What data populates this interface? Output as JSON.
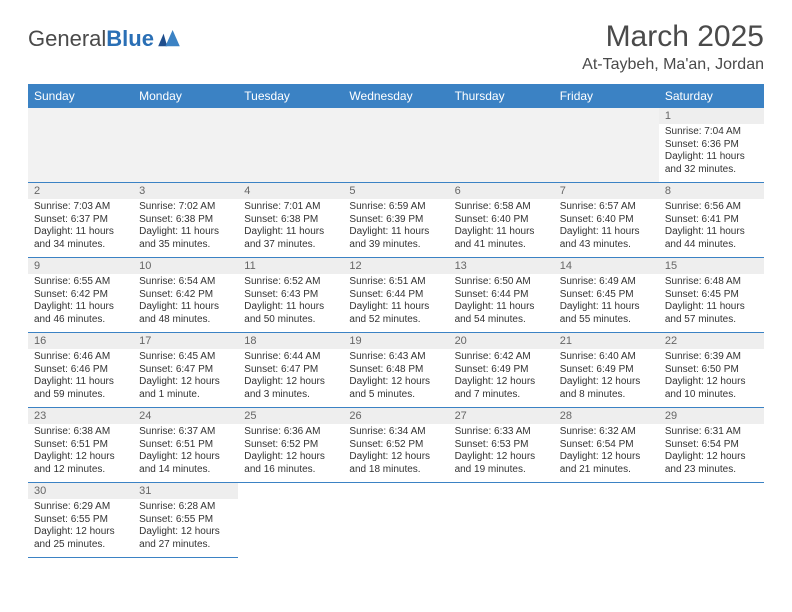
{
  "brand": {
    "left": "General",
    "right": "Blue"
  },
  "title": "March 2025",
  "location": "At-Taybeh, Ma'an, Jordan",
  "daynames": [
    "Sunday",
    "Monday",
    "Tuesday",
    "Wednesday",
    "Thursday",
    "Friday",
    "Saturday"
  ],
  "colors": {
    "header_bg": "#3b82c4",
    "header_text": "#ffffff",
    "brand_blue": "#2a6fb5",
    "text": "#4a4a4a",
    "grid_line": "#3b82c4",
    "blank_bg": "#f2f2f2",
    "daynum_bg": "#eeeeee"
  },
  "weeks": [
    [
      null,
      null,
      null,
      null,
      null,
      null,
      {
        "n": "1",
        "sr": "Sunrise: 7:04 AM",
        "ss": "Sunset: 6:36 PM",
        "dl": "Daylight: 11 hours and 32 minutes."
      }
    ],
    [
      {
        "n": "2",
        "sr": "Sunrise: 7:03 AM",
        "ss": "Sunset: 6:37 PM",
        "dl": "Daylight: 11 hours and 34 minutes."
      },
      {
        "n": "3",
        "sr": "Sunrise: 7:02 AM",
        "ss": "Sunset: 6:38 PM",
        "dl": "Daylight: 11 hours and 35 minutes."
      },
      {
        "n": "4",
        "sr": "Sunrise: 7:01 AM",
        "ss": "Sunset: 6:38 PM",
        "dl": "Daylight: 11 hours and 37 minutes."
      },
      {
        "n": "5",
        "sr": "Sunrise: 6:59 AM",
        "ss": "Sunset: 6:39 PM",
        "dl": "Daylight: 11 hours and 39 minutes."
      },
      {
        "n": "6",
        "sr": "Sunrise: 6:58 AM",
        "ss": "Sunset: 6:40 PM",
        "dl": "Daylight: 11 hours and 41 minutes."
      },
      {
        "n": "7",
        "sr": "Sunrise: 6:57 AM",
        "ss": "Sunset: 6:40 PM",
        "dl": "Daylight: 11 hours and 43 minutes."
      },
      {
        "n": "8",
        "sr": "Sunrise: 6:56 AM",
        "ss": "Sunset: 6:41 PM",
        "dl": "Daylight: 11 hours and 44 minutes."
      }
    ],
    [
      {
        "n": "9",
        "sr": "Sunrise: 6:55 AM",
        "ss": "Sunset: 6:42 PM",
        "dl": "Daylight: 11 hours and 46 minutes."
      },
      {
        "n": "10",
        "sr": "Sunrise: 6:54 AM",
        "ss": "Sunset: 6:42 PM",
        "dl": "Daylight: 11 hours and 48 minutes."
      },
      {
        "n": "11",
        "sr": "Sunrise: 6:52 AM",
        "ss": "Sunset: 6:43 PM",
        "dl": "Daylight: 11 hours and 50 minutes."
      },
      {
        "n": "12",
        "sr": "Sunrise: 6:51 AM",
        "ss": "Sunset: 6:44 PM",
        "dl": "Daylight: 11 hours and 52 minutes."
      },
      {
        "n": "13",
        "sr": "Sunrise: 6:50 AM",
        "ss": "Sunset: 6:44 PM",
        "dl": "Daylight: 11 hours and 54 minutes."
      },
      {
        "n": "14",
        "sr": "Sunrise: 6:49 AM",
        "ss": "Sunset: 6:45 PM",
        "dl": "Daylight: 11 hours and 55 minutes."
      },
      {
        "n": "15",
        "sr": "Sunrise: 6:48 AM",
        "ss": "Sunset: 6:45 PM",
        "dl": "Daylight: 11 hours and 57 minutes."
      }
    ],
    [
      {
        "n": "16",
        "sr": "Sunrise: 6:46 AM",
        "ss": "Sunset: 6:46 PM",
        "dl": "Daylight: 11 hours and 59 minutes."
      },
      {
        "n": "17",
        "sr": "Sunrise: 6:45 AM",
        "ss": "Sunset: 6:47 PM",
        "dl": "Daylight: 12 hours and 1 minute."
      },
      {
        "n": "18",
        "sr": "Sunrise: 6:44 AM",
        "ss": "Sunset: 6:47 PM",
        "dl": "Daylight: 12 hours and 3 minutes."
      },
      {
        "n": "19",
        "sr": "Sunrise: 6:43 AM",
        "ss": "Sunset: 6:48 PM",
        "dl": "Daylight: 12 hours and 5 minutes."
      },
      {
        "n": "20",
        "sr": "Sunrise: 6:42 AM",
        "ss": "Sunset: 6:49 PM",
        "dl": "Daylight: 12 hours and 7 minutes."
      },
      {
        "n": "21",
        "sr": "Sunrise: 6:40 AM",
        "ss": "Sunset: 6:49 PM",
        "dl": "Daylight: 12 hours and 8 minutes."
      },
      {
        "n": "22",
        "sr": "Sunrise: 6:39 AM",
        "ss": "Sunset: 6:50 PM",
        "dl": "Daylight: 12 hours and 10 minutes."
      }
    ],
    [
      {
        "n": "23",
        "sr": "Sunrise: 6:38 AM",
        "ss": "Sunset: 6:51 PM",
        "dl": "Daylight: 12 hours and 12 minutes."
      },
      {
        "n": "24",
        "sr": "Sunrise: 6:37 AM",
        "ss": "Sunset: 6:51 PM",
        "dl": "Daylight: 12 hours and 14 minutes."
      },
      {
        "n": "25",
        "sr": "Sunrise: 6:36 AM",
        "ss": "Sunset: 6:52 PM",
        "dl": "Daylight: 12 hours and 16 minutes."
      },
      {
        "n": "26",
        "sr": "Sunrise: 6:34 AM",
        "ss": "Sunset: 6:52 PM",
        "dl": "Daylight: 12 hours and 18 minutes."
      },
      {
        "n": "27",
        "sr": "Sunrise: 6:33 AM",
        "ss": "Sunset: 6:53 PM",
        "dl": "Daylight: 12 hours and 19 minutes."
      },
      {
        "n": "28",
        "sr": "Sunrise: 6:32 AM",
        "ss": "Sunset: 6:54 PM",
        "dl": "Daylight: 12 hours and 21 minutes."
      },
      {
        "n": "29",
        "sr": "Sunrise: 6:31 AM",
        "ss": "Sunset: 6:54 PM",
        "dl": "Daylight: 12 hours and 23 minutes."
      }
    ],
    [
      {
        "n": "30",
        "sr": "Sunrise: 6:29 AM",
        "ss": "Sunset: 6:55 PM",
        "dl": "Daylight: 12 hours and 25 minutes."
      },
      {
        "n": "31",
        "sr": "Sunrise: 6:28 AM",
        "ss": "Sunset: 6:55 PM",
        "dl": "Daylight: 12 hours and 27 minutes."
      },
      null,
      null,
      null,
      null,
      null
    ]
  ]
}
